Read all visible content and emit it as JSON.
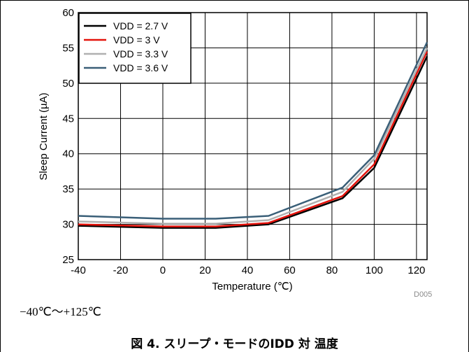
{
  "chart_data": {
    "type": "line",
    "xlabel": "Temperature (℃)",
    "ylabel": "Sleep Current (µA)",
    "xlim": [
      -40,
      125
    ],
    "ylim": [
      25,
      60
    ],
    "x_ticks": [
      -40,
      -20,
      0,
      20,
      40,
      60,
      80,
      100,
      120
    ],
    "y_ticks": [
      25,
      30,
      35,
      40,
      45,
      50,
      55,
      60
    ],
    "grid": true,
    "legend_position": "top-left",
    "series": [
      {
        "name": "VDD = 2.7 V",
        "color": "#000000",
        "x": [
          -40,
          0,
          25,
          50,
          85,
          100,
          125
        ],
        "y": [
          29.8,
          29.5,
          29.5,
          30.0,
          33.7,
          38.0,
          53.8
        ]
      },
      {
        "name": "VDD = 3 V",
        "color": "#e3120b",
        "x": [
          -40,
          0,
          25,
          50,
          85,
          100,
          125
        ],
        "y": [
          30.0,
          29.7,
          29.7,
          30.2,
          34.0,
          38.5,
          54.5
        ]
      },
      {
        "name": "VDD = 3.3 V",
        "color": "#b0b0b0",
        "x": [
          -40,
          0,
          25,
          50,
          85,
          100,
          125
        ],
        "y": [
          30.4,
          30.1,
          30.1,
          30.6,
          34.6,
          39.3,
          55.0
        ]
      },
      {
        "name": "VDD = 3.6 V",
        "color": "#3a5f78",
        "x": [
          -40,
          0,
          25,
          50,
          85,
          100,
          125
        ],
        "y": [
          31.2,
          30.8,
          30.8,
          31.2,
          35.2,
          39.8,
          55.8
        ]
      }
    ]
  },
  "figure_code": "D005",
  "range_text": "−40℃〜+125℃",
  "caption": "図 4. スリープ・モードのIDD 対 温度"
}
